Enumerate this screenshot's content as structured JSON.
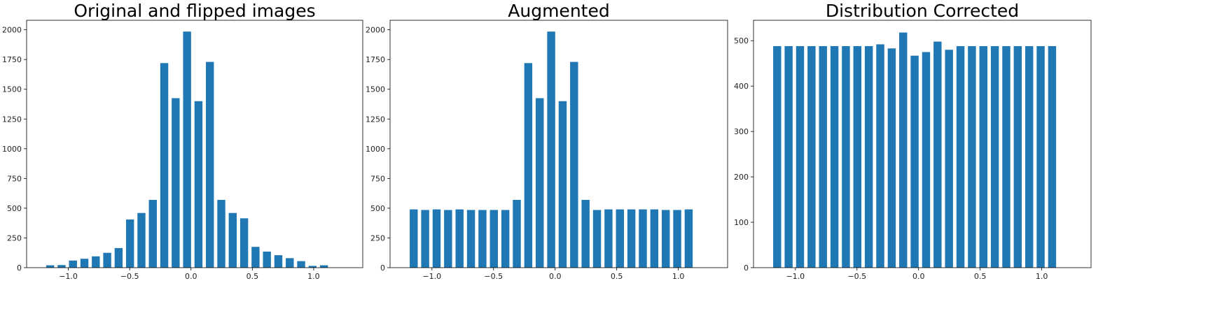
{
  "colors": {
    "bar": "#1f77b4",
    "axis": "#000000",
    "background": "#ffffff"
  },
  "chart_data": [
    {
      "type": "bar",
      "title": "Original and flipped images",
      "xlabel": "",
      "ylabel": "",
      "xlim": [
        -1.34,
        1.4
      ],
      "ylim": [
        0,
        2080
      ],
      "bar_width": 0.065,
      "x": [
        -1.148,
        -1.055,
        -0.962,
        -0.869,
        -0.776,
        -0.683,
        -0.59,
        -0.497,
        -0.404,
        -0.311,
        -0.218,
        -0.125,
        -0.032,
        0.061,
        0.154,
        0.247,
        0.34,
        0.433,
        0.526,
        0.619,
        0.712,
        0.805,
        0.898,
        0.991,
        1.084
      ],
      "values": [
        20,
        22,
        60,
        75,
        95,
        125,
        165,
        405,
        460,
        570,
        1720,
        1425,
        1985,
        1400,
        1730,
        570,
        460,
        415,
        175,
        135,
        105,
        80,
        55,
        15,
        20
      ],
      "x_ticks": [
        -1.0,
        -0.5,
        0.0,
        0.5,
        1.0
      ],
      "x_tick_labels": [
        "−1.0",
        "−0.5",
        "0.0",
        "0.5",
        "1.0"
      ],
      "y_ticks": [
        0,
        250,
        500,
        750,
        1000,
        1250,
        1500,
        1750,
        2000
      ],
      "y_tick_labels": [
        "0",
        "250",
        "500",
        "750",
        "1000",
        "1250",
        "1500",
        "1750",
        "2000"
      ],
      "grid": false
    },
    {
      "type": "bar",
      "title": "Augmented",
      "xlabel": "",
      "ylabel": "",
      "xlim": [
        -1.34,
        1.4
      ],
      "ylim": [
        0,
        2080
      ],
      "bar_width": 0.065,
      "x": [
        -1.148,
        -1.055,
        -0.962,
        -0.869,
        -0.776,
        -0.683,
        -0.59,
        -0.497,
        -0.404,
        -0.311,
        -0.218,
        -0.125,
        -0.032,
        0.061,
        0.154,
        0.247,
        0.34,
        0.433,
        0.526,
        0.619,
        0.712,
        0.805,
        0.898,
        0.991,
        1.084
      ],
      "values": [
        490,
        485,
        490,
        485,
        490,
        485,
        485,
        485,
        485,
        570,
        1720,
        1425,
        1985,
        1400,
        1730,
        570,
        485,
        490,
        490,
        490,
        490,
        490,
        485,
        485,
        490
      ],
      "x_ticks": [
        -1.0,
        -0.5,
        0.0,
        0.5,
        1.0
      ],
      "x_tick_labels": [
        "−1.0",
        "−0.5",
        "0.0",
        "0.5",
        "1.0"
      ],
      "y_ticks": [
        0,
        250,
        500,
        750,
        1000,
        1250,
        1500,
        1750,
        2000
      ],
      "y_tick_labels": [
        "0",
        "250",
        "500",
        "750",
        "1000",
        "1250",
        "1500",
        "1750",
        "2000"
      ],
      "grid": false
    },
    {
      "type": "bar",
      "title": "Distribution Corrected",
      "xlabel": "",
      "ylabel": "",
      "xlim": [
        -1.34,
        1.4
      ],
      "ylim": [
        0,
        545
      ],
      "bar_width": 0.065,
      "x": [
        -1.148,
        -1.055,
        -0.962,
        -0.869,
        -0.776,
        -0.683,
        -0.59,
        -0.497,
        -0.404,
        -0.311,
        -0.218,
        -0.125,
        -0.032,
        0.061,
        0.154,
        0.247,
        0.34,
        0.433,
        0.526,
        0.619,
        0.712,
        0.805,
        0.898,
        0.991,
        1.084
      ],
      "values": [
        488,
        488,
        488,
        488,
        488,
        488,
        488,
        488,
        488,
        492,
        483,
        518,
        467,
        475,
        498,
        480,
        488,
        488,
        488,
        488,
        488,
        488,
        488,
        488,
        488
      ],
      "x_ticks": [
        -1.0,
        -0.5,
        0.0,
        0.5,
        1.0
      ],
      "x_tick_labels": [
        "−1.0",
        "−0.5",
        "0.0",
        "0.5",
        "1.0"
      ],
      "y_ticks": [
        0,
        100,
        200,
        300,
        400,
        500
      ],
      "y_tick_labels": [
        "0",
        "100",
        "200",
        "300",
        "400",
        "500"
      ],
      "grid": false
    }
  ]
}
